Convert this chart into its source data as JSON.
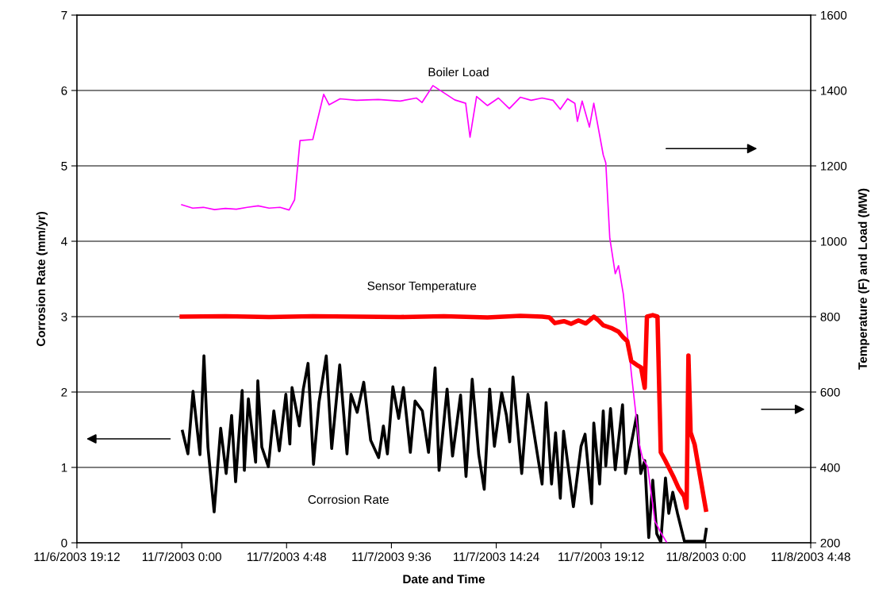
{
  "chart_data": {
    "type": "line",
    "xlabel": "Date and Time",
    "ylabel": "Corrosion Rate (mm/yr)",
    "y2label": "Temperature (F) and Load (MW)",
    "xlim": [
      "2003-11-06T19:12",
      "2003-11-08T04:48"
    ],
    "xticks": [
      {
        "value": "2003-11-06T19:12",
        "label": "11/6/2003 19:12"
      },
      {
        "value": "2003-11-07T00:00",
        "label": "11/7/2003 0:00"
      },
      {
        "value": "2003-11-07T04:48",
        "label": "11/7/2003 4:48"
      },
      {
        "value": "2003-11-07T09:36",
        "label": "11/7/2003 9:36"
      },
      {
        "value": "2003-11-07T14:24",
        "label": "11/7/2003 14:24"
      },
      {
        "value": "2003-11-07T19:12",
        "label": "11/7/2003 19:12"
      },
      {
        "value": "2003-11-08T00:00",
        "label": "11/8/2003 0:00"
      },
      {
        "value": "2003-11-08T04:48",
        "label": "11/8/2003 4:48"
      }
    ],
    "ylim": [
      0,
      7
    ],
    "yticks": [
      0,
      1,
      2,
      3,
      4,
      5,
      6,
      7
    ],
    "y2lim": [
      200,
      1600
    ],
    "y2ticks": [
      200,
      400,
      600,
      800,
      1000,
      1200,
      1400,
      1600
    ],
    "grid": "y",
    "legend": false,
    "marker": "none",
    "line_style": "solid",
    "series": [
      {
        "name": "Boiler Load",
        "color": "#ff00ff",
        "axis": "y2",
        "x": [
          "2003-11-07T00:00",
          "2003-11-07T00:30",
          "2003-11-07T01:00",
          "2003-11-07T01:30",
          "2003-11-07T02:00",
          "2003-11-07T02:30",
          "2003-11-07T03:00",
          "2003-11-07T03:30",
          "2003-11-07T04:00",
          "2003-11-07T04:30",
          "2003-11-07T04:55",
          "2003-11-07T05:10",
          "2003-11-07T05:25",
          "2003-11-07T06:00",
          "2003-11-07T06:30",
          "2003-11-07T06:45",
          "2003-11-07T07:15",
          "2003-11-07T08:00",
          "2003-11-07T09:00",
          "2003-11-07T10:00",
          "2003-11-07T10:45",
          "2003-11-07T11:00",
          "2003-11-07T11:30",
          "2003-11-07T12:00",
          "2003-11-07T12:30",
          "2003-11-07T13:00",
          "2003-11-07T13:12",
          "2003-11-07T13:30",
          "2003-11-07T14:00",
          "2003-11-07T14:30",
          "2003-11-07T15:00",
          "2003-11-07T15:30",
          "2003-11-07T16:00",
          "2003-11-07T16:30",
          "2003-11-07T17:00",
          "2003-11-07T17:20",
          "2003-11-07T17:40",
          "2003-11-07T18:00",
          "2003-11-07T18:07",
          "2003-11-07T18:20",
          "2003-11-07T18:40",
          "2003-11-07T18:52",
          "2003-11-07T19:18",
          "2003-11-07T19:25",
          "2003-11-07T19:36",
          "2003-11-07T19:51",
          "2003-11-07T20:00",
          "2003-11-07T20:13",
          "2003-11-07T20:35",
          "2003-11-07T20:57",
          "2003-11-07T21:06",
          "2003-11-07T21:20",
          "2003-11-07T21:40",
          "2003-11-07T21:55",
          "2003-11-07T22:13"
        ],
        "values": [
          1097,
          1088,
          1090,
          1084,
          1087,
          1085,
          1090,
          1094,
          1088,
          1090,
          1083,
          1110,
          1267,
          1270,
          1390,
          1362,
          1378,
          1374,
          1376,
          1372,
          1380,
          1368,
          1413,
          1394,
          1375,
          1366,
          1276,
          1384,
          1360,
          1380,
          1352,
          1382,
          1374,
          1380,
          1374,
          1350,
          1378,
          1366,
          1318,
          1372,
          1303,
          1366,
          1229,
          1208,
          1008,
          914,
          935,
          861,
          651,
          461,
          425,
          402,
          257,
          229,
          200
        ]
      },
      {
        "name": "Sensor Temperature",
        "color": "#ff0000",
        "axis": "y2",
        "x": [
          "2003-11-07T00:00",
          "2003-11-07T02:00",
          "2003-11-07T04:00",
          "2003-11-07T06:00",
          "2003-11-07T08:00",
          "2003-11-07T10:00",
          "2003-11-07T12:00",
          "2003-11-07T14:00",
          "2003-11-07T15:30",
          "2003-11-07T16:30",
          "2003-11-07T16:50",
          "2003-11-07T17:05",
          "2003-11-07T17:30",
          "2003-11-07T17:50",
          "2003-11-07T18:10",
          "2003-11-07T18:30",
          "2003-11-07T18:52",
          "2003-11-07T19:05",
          "2003-11-07T19:18",
          "2003-11-07T19:40",
          "2003-11-07T20:00",
          "2003-11-07T20:13",
          "2003-11-07T20:24",
          "2003-11-07T20:35",
          "2003-11-07T20:50",
          "2003-11-07T21:02",
          "2003-11-07T21:12",
          "2003-11-07T21:18",
          "2003-11-07T21:34",
          "2003-11-07T21:47",
          "2003-11-07T21:56",
          "2003-11-07T22:08",
          "2003-11-07T22:30",
          "2003-11-07T22:45",
          "2003-11-07T23:00",
          "2003-11-07T23:07",
          "2003-11-07T23:12",
          "2003-11-07T23:18",
          "2003-11-07T23:29",
          "2003-11-07T23:44",
          "2003-11-08T00:00"
        ],
        "values": [
          800,
          801,
          799,
          801,
          800,
          799,
          801,
          798,
          802,
          800,
          798,
          783,
          788,
          781,
          790,
          782,
          800,
          790,
          777,
          770,
          760,
          745,
          735,
          682,
          672,
          665,
          611,
          800,
          804,
          800,
          440,
          419,
          377,
          345,
          324,
          293,
          697,
          493,
          461,
          377,
          288
        ]
      },
      {
        "name": "Corrosion Rate",
        "color": "#000000",
        "x": [
          "2003-11-07T00:02",
          "2003-11-07T00:17",
          "2003-11-07T00:31",
          "2003-11-07T00:50",
          "2003-11-07T01:01",
          "2003-11-07T01:12",
          "2003-11-07T01:29",
          "2003-11-07T01:47",
          "2003-11-07T02:02",
          "2003-11-07T02:17",
          "2003-11-07T02:28",
          "2003-11-07T02:46",
          "2003-11-07T02:52",
          "2003-11-07T03:03",
          "2003-11-07T03:23",
          "2003-11-07T03:29",
          "2003-11-07T03:40",
          "2003-11-07T03:58",
          "2003-11-07T04:13",
          "2003-11-07T04:28",
          "2003-11-07T04:46",
          "2003-11-07T04:57",
          "2003-11-07T05:03",
          "2003-11-07T05:23",
          "2003-11-07T05:34",
          "2003-11-07T05:47",
          "2003-11-07T06:02",
          "2003-11-07T06:17",
          "2003-11-07T06:37",
          "2003-11-07T06:52",
          "2003-11-07T07:14",
          "2003-11-07T07:34",
          "2003-11-07T07:45",
          "2003-11-07T08:02",
          "2003-11-07T08:20",
          "2003-11-07T08:39",
          "2003-11-07T09:01",
          "2003-11-07T09:14",
          "2003-11-07T09:25",
          "2003-11-07T09:40",
          "2003-11-07T09:56",
          "2003-11-07T10:09",
          "2003-11-07T10:28",
          "2003-11-07T10:41",
          "2003-11-07T11:01",
          "2003-11-07T11:18",
          "2003-11-07T11:36",
          "2003-11-07T11:47",
          "2003-11-07T12:09",
          "2003-11-07T12:24",
          "2003-11-07T12:46",
          "2003-11-07T13:01",
          "2003-11-07T13:18",
          "2003-11-07T13:36",
          "2003-11-07T13:51",
          "2003-11-07T14:06",
          "2003-11-07T14:19",
          "2003-11-07T14:39",
          "2003-11-07T14:52",
          "2003-11-07T15:01",
          "2003-11-07T15:10",
          "2003-11-07T15:34",
          "2003-11-07T15:51",
          "2003-11-07T16:30",
          "2003-11-07T16:41",
          "2003-11-07T16:56",
          "2003-11-07T17:07",
          "2003-11-07T17:20",
          "2003-11-07T17:29",
          "2003-11-07T17:56",
          "2003-11-07T18:17",
          "2003-11-07T18:28",
          "2003-11-07T18:46",
          "2003-11-07T18:52",
          "2003-11-07T19:08",
          "2003-11-07T19:18",
          "2003-11-07T19:25",
          "2003-11-07T19:38",
          "2003-11-07T19:51",
          "2003-11-07T20:11",
          "2003-11-07T20:19",
          "2003-11-07T20:50",
          "2003-11-07T21:01",
          "2003-11-07T21:12",
          "2003-11-07T21:23",
          "2003-11-07T21:34",
          "2003-11-07T21:45",
          "2003-11-07T21:56",
          "2003-11-07T22:09",
          "2003-11-07T22:18",
          "2003-11-07T22:29",
          "2003-11-07T22:42",
          "2003-11-07T23:01",
          "2003-11-07T23:56",
          "2003-11-08T00:01"
        ],
        "values": [
          1.48,
          1.18,
          2.01,
          1.17,
          2.48,
          1.27,
          0.41,
          1.52,
          0.92,
          1.69,
          0.81,
          2.02,
          0.96,
          1.91,
          1.07,
          2.15,
          1.27,
          1.01,
          1.75,
          1.22,
          1.97,
          1.31,
          2.06,
          1.55,
          2.04,
          2.38,
          1.04,
          1.86,
          2.48,
          1.25,
          2.36,
          1.18,
          1.97,
          1.73,
          2.13,
          1.36,
          1.13,
          1.55,
          1.18,
          2.07,
          1.65,
          2.06,
          1.2,
          1.88,
          1.75,
          1.2,
          2.32,
          0.96,
          2.04,
          1.15,
          1.96,
          0.88,
          2.17,
          1.17,
          0.71,
          2.04,
          1.28,
          1.99,
          1.69,
          1.34,
          2.2,
          0.92,
          1.97,
          0.78,
          1.86,
          0.78,
          1.46,
          0.59,
          1.48,
          0.48,
          1.28,
          1.44,
          0.52,
          1.59,
          0.78,
          1.75,
          1.02,
          1.78,
          0.97,
          1.83,
          0.92,
          1.69,
          0.92,
          1.09,
          0.07,
          0.83,
          0.12,
          0.01,
          0.86,
          0.39,
          0.67,
          0.39,
          0.02,
          0.02,
          0.18
        ]
      }
    ]
  }
}
